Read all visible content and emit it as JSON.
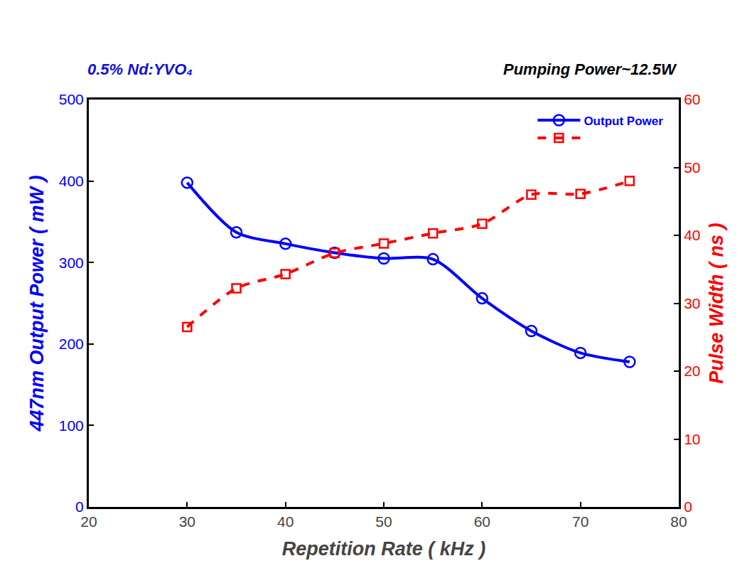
{
  "chart_data": {
    "type": "line",
    "x_label": "Repetition Rate ( kHz )",
    "y_label": "447nm Output Power ( mW )",
    "y2_label": "Pulse Width ( ns )",
    "annotations": [
      {
        "text": "0.5% Nd:YVO₄",
        "color": "#1010e0"
      },
      {
        "text": "Pumping Power~12.5W",
        "color": "#000000"
      }
    ],
    "x": [
      30,
      35,
      40,
      45,
      50,
      55,
      60,
      65,
      70,
      75
    ],
    "series": [
      {
        "name": "Output Power",
        "color": "#0000ff",
        "marker": "circle-open",
        "line_style": "solid",
        "values": [
          398,
          337,
          323,
          312,
          305,
          304,
          256,
          216,
          189,
          178
        ]
      },
      {
        "color": "#ff0000",
        "marker": "square-open",
        "line_style": "dash",
        "axis": "y2",
        "values": [
          26.5,
          32.2,
          34.3,
          37.4,
          38.8,
          40.3,
          41.7,
          46.0,
          46.1,
          48.0
        ]
      }
    ],
    "xlim": [
      20,
      80
    ],
    "xticks": [
      20,
      30,
      40,
      50,
      60,
      70,
      80
    ],
    "ylim": [
      0,
      500
    ],
    "yticks": [
      0,
      100,
      200,
      300,
      400,
      500
    ],
    "y2lim": [
      0,
      60
    ],
    "y2ticks": [
      0,
      10,
      20,
      30,
      40,
      50,
      60
    ],
    "grid": false,
    "legend": "top right"
  }
}
